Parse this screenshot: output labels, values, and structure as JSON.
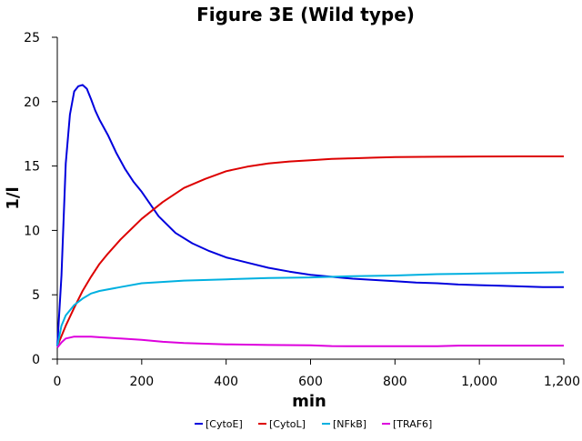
{
  "chart_data": {
    "type": "line",
    "title": "Figure 3E (Wild type)",
    "xlabel": "min",
    "ylabel": "1/l",
    "xlim": [
      0,
      1200
    ],
    "ylim": [
      0,
      25
    ],
    "xticks": [
      0,
      200,
      400,
      600,
      800,
      1000,
      1200
    ],
    "xtick_labels": [
      "0",
      "200",
      "400",
      "600",
      "800",
      "1,000",
      "1,200"
    ],
    "yticks": [
      0,
      5,
      10,
      15,
      20,
      25
    ],
    "ytick_labels": [
      "0",
      "5",
      "10",
      "15",
      "20",
      "25"
    ],
    "grid": false,
    "legend_position": "bottom",
    "series": [
      {
        "name": "[CytoE]",
        "color": "#0000dd",
        "x": [
          0,
          10,
          20,
          30,
          40,
          50,
          60,
          70,
          80,
          90,
          100,
          120,
          140,
          160,
          180,
          200,
          240,
          280,
          320,
          360,
          400,
          450,
          500,
          550,
          600,
          650,
          700,
          750,
          800,
          850,
          900,
          950,
          1000,
          1050,
          1100,
          1150,
          1200
        ],
        "y": [
          1.0,
          6.5,
          15.2,
          19.0,
          20.8,
          21.2,
          21.3,
          21.0,
          20.2,
          19.3,
          18.6,
          17.4,
          16.0,
          14.8,
          13.8,
          13.0,
          11.1,
          9.8,
          9.0,
          8.4,
          7.9,
          7.5,
          7.1,
          6.8,
          6.55,
          6.4,
          6.25,
          6.15,
          6.05,
          5.95,
          5.9,
          5.8,
          5.75,
          5.7,
          5.65,
          5.6,
          5.6
        ]
      },
      {
        "name": "[CytoL]",
        "color": "#dd0000",
        "x": [
          0,
          20,
          40,
          60,
          80,
          100,
          120,
          150,
          200,
          250,
          300,
          350,
          400,
          450,
          500,
          550,
          600,
          650,
          700,
          750,
          800,
          900,
          1000,
          1100,
          1200
        ],
        "y": [
          1.0,
          2.6,
          4.0,
          5.3,
          6.4,
          7.4,
          8.2,
          9.3,
          10.9,
          12.2,
          13.3,
          14.0,
          14.6,
          14.95,
          15.2,
          15.35,
          15.45,
          15.55,
          15.6,
          15.65,
          15.7,
          15.72,
          15.74,
          15.75,
          15.75
        ]
      },
      {
        "name": "[NFkB]",
        "color": "#00b0e0",
        "x": [
          0,
          10,
          20,
          40,
          60,
          80,
          100,
          150,
          200,
          300,
          400,
          500,
          600,
          700,
          800,
          900,
          1000,
          1100,
          1200
        ],
        "y": [
          1.0,
          2.6,
          3.4,
          4.2,
          4.7,
          5.1,
          5.3,
          5.6,
          5.9,
          6.1,
          6.2,
          6.3,
          6.35,
          6.45,
          6.5,
          6.6,
          6.65,
          6.7,
          6.75
        ]
      },
      {
        "name": "[TRAF6]",
        "color": "#dd00dd",
        "x": [
          0,
          10,
          20,
          40,
          60,
          80,
          100,
          150,
          200,
          250,
          300,
          400,
          500,
          600,
          650,
          700,
          800,
          900,
          950,
          1000,
          1100,
          1200
        ],
        "y": [
          0.9,
          1.3,
          1.6,
          1.75,
          1.75,
          1.75,
          1.7,
          1.6,
          1.5,
          1.35,
          1.25,
          1.15,
          1.1,
          1.08,
          1.02,
          1.0,
          1.0,
          1.0,
          1.05,
          1.05,
          1.05,
          1.05
        ]
      }
    ]
  }
}
